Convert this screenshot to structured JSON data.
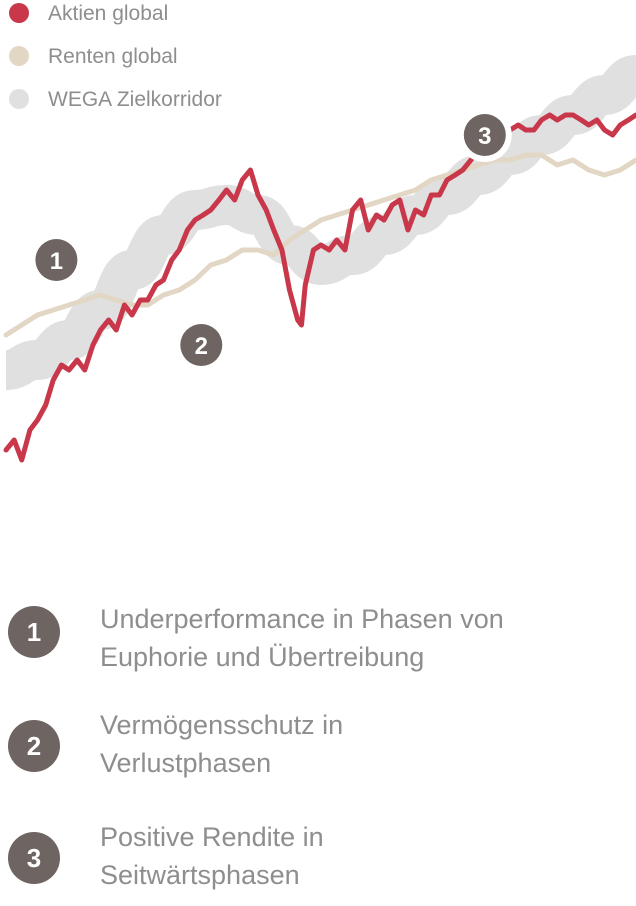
{
  "chart_data": {
    "type": "line",
    "title": "",
    "xlabel": "",
    "ylabel": "",
    "grid": false,
    "legend_position": "top-left",
    "xlim": [
      0,
      100
    ],
    "ylim": [
      0,
      100
    ],
    "series": [
      {
        "name": "Aktien global",
        "color": "#c8374a",
        "style": "line",
        "x": [
          0.0,
          1.3,
          2.5,
          3.8,
          5.0,
          6.3,
          7.5,
          8.8,
          10.0,
          11.3,
          12.5,
          13.8,
          15.0,
          16.3,
          17.5,
          18.8,
          20.0,
          21.3,
          22.5,
          23.8,
          25.0,
          26.3,
          27.5,
          28.8,
          30.0,
          31.3,
          32.5,
          33.8,
          35.0,
          36.3,
          37.5,
          38.8,
          40.0,
          41.3,
          42.5,
          43.8,
          44.4,
          45.0,
          46.3,
          46.9,
          47.5,
          48.8,
          50.0,
          51.3,
          52.5,
          53.8,
          55.0,
          56.3,
          57.5,
          58.8,
          60.0,
          61.3,
          62.5,
          63.8,
          65.0,
          66.3,
          67.5,
          68.8,
          70.0,
          71.3,
          72.5,
          73.8,
          75.0,
          76.3,
          77.5,
          78.8,
          80.0,
          81.3,
          82.5,
          83.8,
          85.0,
          86.3,
          87.5,
          88.8,
          90.0,
          91.3,
          92.5,
          93.8,
          95.0,
          96.3,
          97.5,
          98.8,
          100.0
        ],
        "y": [
          22,
          24,
          20,
          26,
          28,
          31,
          36,
          39,
          38,
          40,
          38,
          43,
          46,
          48,
          46,
          51,
          49,
          52,
          52,
          55,
          56,
          60,
          62,
          66,
          68,
          69,
          70,
          72,
          74,
          72,
          76,
          78,
          73,
          70,
          66,
          62,
          58,
          54,
          48,
          47,
          55,
          62,
          63,
          62,
          64,
          62,
          70,
          72,
          66,
          69,
          68,
          71,
          72,
          66,
          70,
          69,
          73,
          73,
          76,
          77,
          78,
          80,
          82,
          83,
          84,
          84,
          86,
          87,
          86,
          86,
          88,
          89,
          88,
          89,
          89,
          88,
          87,
          88,
          86,
          85,
          87,
          88,
          89
        ]
      },
      {
        "name": "Renten global",
        "color": "#e2d7c4",
        "style": "line",
        "x": [
          0.0,
          2.5,
          5.0,
          7.5,
          10.0,
          12.5,
          15.0,
          17.5,
          20.0,
          22.5,
          25.0,
          27.5,
          30.0,
          32.5,
          35.0,
          37.5,
          40.0,
          42.5,
          45.0,
          47.5,
          50.0,
          52.5,
          55.0,
          57.5,
          60.0,
          62.5,
          65.0,
          67.5,
          70.0,
          72.5,
          75.0,
          77.5,
          80.0,
          82.5,
          85.0,
          87.5,
          90.0,
          92.5,
          95.0,
          97.5,
          100.0
        ],
        "y": [
          45,
          47,
          49,
          50,
          51,
          52,
          53,
          52,
          51,
          51,
          53,
          54,
          56,
          59,
          60,
          62,
          62,
          61,
          64,
          66,
          68,
          69,
          70,
          71,
          72,
          73,
          74,
          76,
          77,
          78,
          79,
          80,
          80,
          81,
          81,
          79,
          80,
          78,
          77,
          78,
          80
        ]
      },
      {
        "name": "WEGA Zielkorridor",
        "color": "#e0e0e0",
        "style": "band",
        "x": [
          0,
          5,
          10,
          15,
          20,
          25,
          30,
          35,
          40,
          45,
          50,
          55,
          60,
          65,
          70,
          75,
          80,
          85,
          90,
          95,
          100
        ],
        "y": [
          38,
          40,
          44,
          50,
          58,
          65,
          70,
          71,
          69,
          63,
          59,
          61,
          65,
          69,
          73,
          77,
          81,
          85,
          89,
          93,
          97
        ],
        "band_half_width": 4
      }
    ],
    "annotations": [
      {
        "label": "1",
        "x": 8,
        "y": 60
      },
      {
        "label": "2",
        "x": 31,
        "y": 43
      },
      {
        "label": "3",
        "x": 76,
        "y": 85
      }
    ]
  },
  "notes": [
    {
      "badge": "1",
      "text_line1": "Underperformance in Phasen von",
      "text_line2": "Euphorie und Übertreibung"
    },
    {
      "badge": "2",
      "text_line1": "Vermögensschutz in",
      "text_line2": "Verlustphasen"
    },
    {
      "badge": "3",
      "text_line1": "Positive Rendite in",
      "text_line2": "Seitwärtsphasen"
    }
  ]
}
